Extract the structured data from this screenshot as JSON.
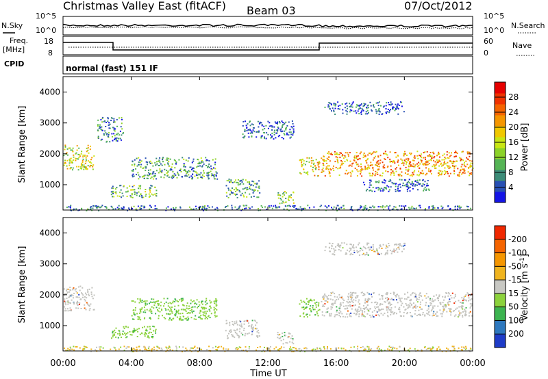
{
  "header": {
    "station": "Christmas Valley East (fitACF)",
    "beam": "Beam 03",
    "date": "07/Oct/2012"
  },
  "sky_panel": {
    "left_label": "N.Sky",
    "right_label": "N.Search",
    "left_ticks": [
      "10^5",
      "10^0"
    ],
    "right_ticks": [
      "10^5",
      "10^0"
    ]
  },
  "freq_panel": {
    "left_label_1": "Freq.",
    "left_label_2": "[MHz]",
    "right_label": "Nave",
    "left_ticks": [
      "18",
      "8"
    ],
    "right_ticks": [
      "60",
      "0"
    ]
  },
  "cpid": {
    "label": "CPID",
    "value": "normal (fast) 151 IF"
  },
  "x_axis": {
    "title": "Time UT",
    "ticks": [
      "00:00",
      "04:00",
      "08:00",
      "12:00",
      "16:00",
      "20:00",
      "00:00"
    ]
  },
  "chart_data": [
    {
      "type": "heatmap",
      "title": "",
      "ylabel": "Slant Range [km]",
      "xlabel": "Time UT",
      "x_range_hours": [
        0,
        24
      ],
      "ylim": [
        180,
        4500
      ],
      "yticks": [
        1000,
        2000,
        3000,
        4000
      ],
      "colorbar_label": "Power [dB]",
      "colorbar_ticks": [
        4,
        8,
        12,
        16,
        20,
        24,
        28
      ],
      "colorbar_colors": [
        "#1414e6",
        "#2850b4",
        "#3c8c78",
        "#55b455",
        "#8cd228",
        "#c8e614",
        "#f0c800",
        "#f59600",
        "#f56400",
        "#f03200",
        "#e60000"
      ],
      "echo_regions": [
        {
          "t0": 0.0,
          "t1": 1.8,
          "r0": 1500,
          "r1": 2300,
          "level": 0.55
        },
        {
          "t0": 2.0,
          "t1": 3.5,
          "r0": 2400,
          "r1": 3200,
          "level": 0.25
        },
        {
          "t0": 2.8,
          "t1": 5.5,
          "r0": 600,
          "r1": 1000,
          "level": 0.4
        },
        {
          "t0": 4.0,
          "t1": 9.0,
          "r0": 1200,
          "r1": 1900,
          "level": 0.3
        },
        {
          "t0": 9.5,
          "t1": 11.5,
          "r0": 600,
          "r1": 1200,
          "level": 0.35
        },
        {
          "t0": 10.5,
          "t1": 13.5,
          "r0": 2500,
          "r1": 3100,
          "level": 0.15
        },
        {
          "t0": 12.5,
          "t1": 13.5,
          "r0": 400,
          "r1": 800,
          "level": 0.45
        },
        {
          "t0": 13.8,
          "t1": 15.0,
          "r0": 1300,
          "r1": 1900,
          "level": 0.6
        },
        {
          "t0": 15.1,
          "t1": 24.0,
          "r0": 1300,
          "r1": 2100,
          "level": 0.75
        },
        {
          "t0": 15.3,
          "t1": 20.0,
          "r0": 3300,
          "r1": 3700,
          "level": 0.15
        },
        {
          "t0": 17.5,
          "t1": 21.5,
          "r0": 800,
          "r1": 1200,
          "level": 0.15
        },
        {
          "t0": 0.0,
          "t1": 24.0,
          "r0": 180,
          "r1": 350,
          "level": 0.2
        }
      ]
    },
    {
      "type": "heatmap",
      "title": "",
      "ylabel": "Slant Range [km]",
      "xlabel": "Time UT",
      "x_range_hours": [
        0,
        24
      ],
      "ylim": [
        180,
        4500
      ],
      "yticks": [
        1000,
        2000,
        3000,
        4000
      ],
      "colorbar_label": "Velocity [m s^-1]",
      "colorbar_ticks": [
        200,
        100,
        50,
        15,
        -15,
        -50,
        -100,
        -200
      ],
      "colorbar_colors": [
        "#1e3cc8",
        "#2d78be",
        "#3cb450",
        "#8cd23c",
        "#c8c8c3",
        "#f0b41e",
        "#f59600",
        "#f56400",
        "#f02800"
      ],
      "echo_regions": [
        {
          "t0": 0.0,
          "t1": 1.8,
          "r0": 1500,
          "r1": 2300,
          "kind": "ground"
        },
        {
          "t0": 2.8,
          "t1": 5.5,
          "r0": 600,
          "r1": 1000,
          "kind": "green"
        },
        {
          "t0": 4.0,
          "t1": 9.0,
          "r0": 1200,
          "r1": 1900,
          "kind": "green"
        },
        {
          "t0": 9.5,
          "t1": 11.5,
          "r0": 600,
          "r1": 1200,
          "kind": "ground"
        },
        {
          "t0": 12.5,
          "t1": 13.5,
          "r0": 400,
          "r1": 800,
          "kind": "ground"
        },
        {
          "t0": 13.8,
          "t1": 15.0,
          "r0": 1300,
          "r1": 1900,
          "kind": "green"
        },
        {
          "t0": 15.1,
          "t1": 24.0,
          "r0": 1300,
          "r1": 2100,
          "kind": "ground"
        },
        {
          "t0": 15.3,
          "t1": 20.0,
          "r0": 3300,
          "r1": 3700,
          "kind": "ground"
        },
        {
          "t0": 0.0,
          "t1": 24.0,
          "r0": 180,
          "r1": 350,
          "kind": "mixed"
        }
      ]
    }
  ]
}
